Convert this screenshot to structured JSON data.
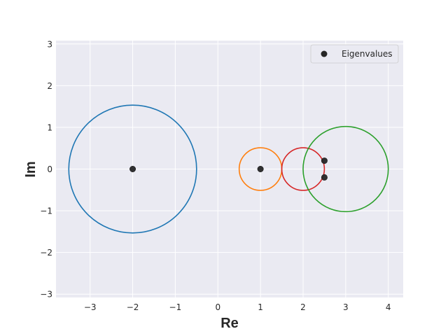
{
  "chart_data": {
    "type": "scatter",
    "xlabel": "Re",
    "ylabel": "Im",
    "xlim": [
      -3.8,
      4.35
    ],
    "ylim": [
      -3.08,
      3.08
    ],
    "grid": true,
    "legend_position": "top-right",
    "x_ticks": [
      -3,
      -2,
      -1,
      0,
      1,
      2,
      3,
      4
    ],
    "x_tick_labels": [
      "−3",
      "−2",
      "−1",
      "0",
      "1",
      "2",
      "3",
      "4"
    ],
    "y_ticks": [
      -3,
      -2,
      -1,
      0,
      1,
      2,
      3
    ],
    "y_tick_labels": [
      "−3",
      "−2",
      "−1",
      "0",
      "1",
      "2",
      "3"
    ],
    "series": [
      {
        "name": "Eigenvalues",
        "color": "#262626",
        "points": [
          {
            "x": -2,
            "y": 0
          },
          {
            "x": 1,
            "y": 0
          },
          {
            "x": 2.5,
            "y": 0.2
          },
          {
            "x": 2.5,
            "y": -0.2
          }
        ]
      }
    ],
    "circles": [
      {
        "cx": -2,
        "cy": 0,
        "r": 1.5,
        "color": "#1f77b4"
      },
      {
        "cx": 1,
        "cy": 0,
        "r": 0.5,
        "color": "#ff7f0e"
      },
      {
        "cx": 2,
        "cy": 0,
        "r": 0.5,
        "color": "#d62728"
      },
      {
        "cx": 3,
        "cy": 0,
        "r": 1.0,
        "color": "#2ca02c"
      }
    ],
    "colors": {
      "plot_background": "#eaeaf2",
      "grid": "#ffffff",
      "text": "#262626"
    }
  }
}
